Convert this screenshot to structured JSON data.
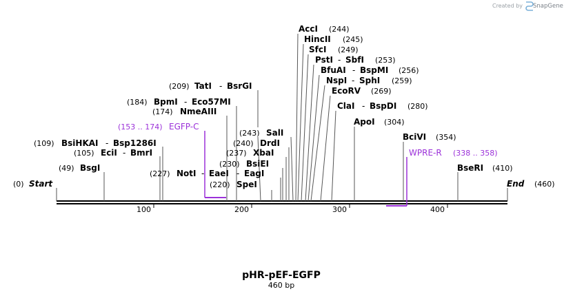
{
  "brand": {
    "created_by": "Created by",
    "name": "SnapGene"
  },
  "map": {
    "name": "pHR-pEF-EGFP",
    "length_label": "460 bp",
    "start_label": "Start",
    "start_pos": "(0)",
    "end_label": "End",
    "end_pos": "(460)",
    "ticks": [
      "100",
      "200",
      "300",
      "400"
    ]
  },
  "sites": [
    {
      "pos": "(49)",
      "names": [
        "BsgI"
      ]
    },
    {
      "pos": "(105)",
      "names": [
        "EciI",
        "BmrI"
      ]
    },
    {
      "pos": "(109)",
      "names": [
        "BsiHKAI",
        "Bsp1286I"
      ]
    },
    {
      "pos": "(174)",
      "names": [
        "NmeAIII"
      ]
    },
    {
      "pos": "(184)",
      "names": [
        "BpmI",
        "Eco57MI"
      ]
    },
    {
      "pos": "(209)",
      "names": [
        "TatI",
        "BsrGI"
      ]
    },
    {
      "pos": "(220)",
      "names": [
        "SpeI"
      ]
    },
    {
      "pos": "(227)",
      "names": [
        "NotI",
        "EaeI",
        "EagI"
      ]
    },
    {
      "pos": "(230)",
      "names": [
        "BsiEI"
      ]
    },
    {
      "pos": "(237)",
      "names": [
        "XbaI"
      ]
    },
    {
      "pos": "(240)",
      "names": [
        "DrdI"
      ]
    },
    {
      "pos": "(243)",
      "names": [
        "SalI"
      ]
    },
    {
      "pos": "(244)",
      "names": [
        "AccI"
      ]
    },
    {
      "pos": "(245)",
      "names": [
        "HincII"
      ]
    },
    {
      "pos": "(249)",
      "names": [
        "SfcI"
      ]
    },
    {
      "pos": "(253)",
      "names": [
        "PstI",
        "SbfI"
      ]
    },
    {
      "pos": "(256)",
      "names": [
        "BfuAI",
        "BspMI"
      ]
    },
    {
      "pos": "(259)",
      "names": [
        "NspI",
        "SphI"
      ]
    },
    {
      "pos": "(269)",
      "names": [
        "EcoRV"
      ]
    },
    {
      "pos": "(280)",
      "names": [
        "ClaI",
        "BspDI"
      ]
    },
    {
      "pos": "(304)",
      "names": [
        "ApoI"
      ]
    },
    {
      "pos": "(354)",
      "names": [
        "BciVI"
      ]
    },
    {
      "pos": "(410)",
      "names": [
        "BseRI"
      ]
    }
  ],
  "features": [
    {
      "name": "EGFP-C",
      "range": "(153 .. 174)"
    },
    {
      "name": "WPRE-R",
      "range": "(338 .. 358)"
    }
  ],
  "colors": {
    "feature": "#9b30d9",
    "backbone": "#000000",
    "leader": "#555555"
  }
}
